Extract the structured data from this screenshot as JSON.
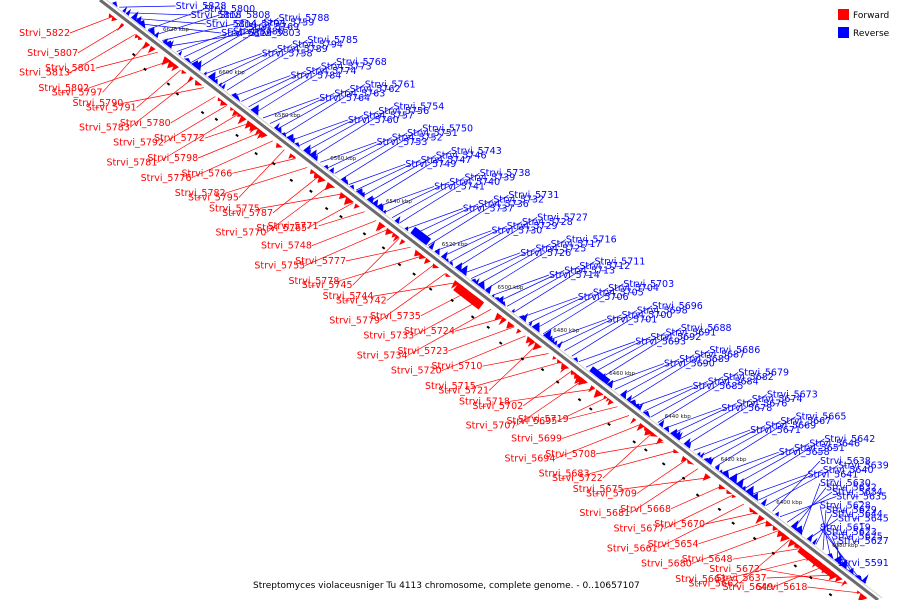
{
  "legend": {
    "items": [
      {
        "label": "Forward",
        "color": "#ff0000"
      },
      {
        "label": "Reverse",
        "color": "#0000ff"
      }
    ]
  },
  "caption": "Streptomyces violaceusniger Tu 4113 chromosome, complete genome. - 0..10657107",
  "colors": {
    "forward": "#ff0000",
    "reverse": "#0000ff",
    "backbone": "#6b6b6b"
  },
  "ticks": [
    "6620 kbp",
    "6600 kbp",
    "6580 kbp",
    "6560 kbp",
    "6540 kbp",
    "6520 kbp",
    "6500 kbp",
    "6480 kbp",
    "6460 kbp",
    "6440 kbp",
    "6420 kbp",
    "6400 kbp",
    "6380 kbp"
  ],
  "forward_labels": [
    "Strvi_5822",
    "Strvi_5807",
    "Strvi_5813",
    "Strvi_5797",
    "Strvi_5801",
    "Strvi_5802",
    "Strvi_5791",
    "Strvi_5783",
    "Strvi_5790",
    "Strvi_5780",
    "Strvi_5792",
    "Strvi_5781",
    "Strvi_5772",
    "Strvi_5798",
    "Strvi_5776",
    "Strvi_5795",
    "Strvi_5766",
    "Strvi_5782",
    "Strvi_5787",
    "Strvi_5770",
    "Strvi_5775",
    "Strvi_5765",
    "Strvi_5771",
    "Strvi_5748",
    "Strvi_5755",
    "Strvi_5745",
    "Strvi_5777",
    "Strvi_5778",
    "Strvi_5742",
    "Strvi_5779",
    "Strvi_5744",
    "Strvi_5735",
    "Strvi_5733",
    "Strvi_5734",
    "Strvi_5724",
    "Strvi_5723",
    "Strvi_5720",
    "Strvi_5721",
    "Strvi_5710",
    "Strvi_5715",
    "Strvi_5702",
    "Strvi_5707",
    "Strvi_5718",
    "Strvi_5695",
    "Strvi_5719",
    "Strvi_5699",
    "Strvi_5694",
    "Strvi_5722",
    "Strvi_5708",
    "Strvi_5683",
    "Strvi_5709",
    "Strvi_5681",
    "Strvi_5675",
    "Strvi_5668",
    "Strvi_5677",
    "Strvi_5661",
    "Strvi_5670",
    "Strvi_5654",
    "Strvi_5680",
    "Strvi_5662",
    "Strvi_5648",
    "Strvi_5663",
    "Strvi_5649",
    "Strvi_5637",
    "Strvi_5672",
    "Strvi_5618"
  ],
  "reverse_labels": [
    "Strvi_5828",
    "Strvi_5818",
    "Strvi_5814",
    "Strvi_5819",
    "Strvi_5800",
    "Strvi_5808",
    "Strvi_5793",
    "Strvi_5803",
    "Strvi_5786",
    "Strvi_5769",
    "Strvi_5759",
    "Strvi_5788",
    "Strvi_5758",
    "Strvi_5789",
    "Strvi_5794",
    "Strvi_5785",
    "Strvi_5784",
    "Strvi_5774",
    "Strvi_5773",
    "Strvi_5768",
    "Strvi_5764",
    "Strvi_5763",
    "Strvi_5762",
    "Strvi_5761",
    "Strvi_5760",
    "Strvi_5757",
    "Strvi_5756",
    "Strvi_5754",
    "Strvi_5753",
    "Strvi_5752",
    "Strvi_5751",
    "Strvi_5750",
    "Strvi_5749",
    "Strvi_5747",
    "Strvi_5746",
    "Strvi_5743",
    "Strvi_5741",
    "Strvi_5740",
    "Strvi_5739",
    "Strvi_5738",
    "Strvi_5737",
    "Strvi_5736",
    "Strvi_5732",
    "Strvi_5731",
    "Strvi_5730",
    "Strvi_5729",
    "Strvi_5728",
    "Strvi_5727",
    "Strvi_5726",
    "Strvi_5725",
    "Strvi_5717",
    "Strvi_5716",
    "Strvi_5714",
    "Strvi_5713",
    "Strvi_5712",
    "Strvi_5711",
    "Strvi_5706",
    "Strvi_5705",
    "Strvi_5704",
    "Strvi_5703",
    "Strvi_5701",
    "Strvi_5700",
    "Strvi_5698",
    "Strvi_5696",
    "Strvi_5693",
    "Strvi_5692",
    "Strvi_5691",
    "Strvi_5688",
    "Strvi_5690",
    "Strvi_5689",
    "Strvi_5687",
    "Strvi_5686",
    "Strvi_5685",
    "Strvi_5684",
    "Strvi_5682",
    "Strvi_5679",
    "Strvi_5678",
    "Strvi_5676",
    "Strvi_5674",
    "Strvi_5673",
    "Strvi_5671",
    "Strvi_5669",
    "Strvi_5667",
    "Strvi_5665",
    "Strvi_5658",
    "Strvi_5651",
    "Strvi_5646",
    "Strvi_5642",
    "Strvi_5641",
    "Strvi_5640",
    "Strvi_5639",
    "Strvi_5638",
    "Strvi_5635",
    "Strvi_5634",
    "Strvi_5632",
    "Strvi_5630",
    "Strvi_5645",
    "Strvi_5644",
    "Strvi_5629",
    "Strvi_5628",
    "Strvi_5627",
    "Strvi_5625",
    "Strvi_5623",
    "Strvi_5619",
    "Strvi_5591"
  ]
}
